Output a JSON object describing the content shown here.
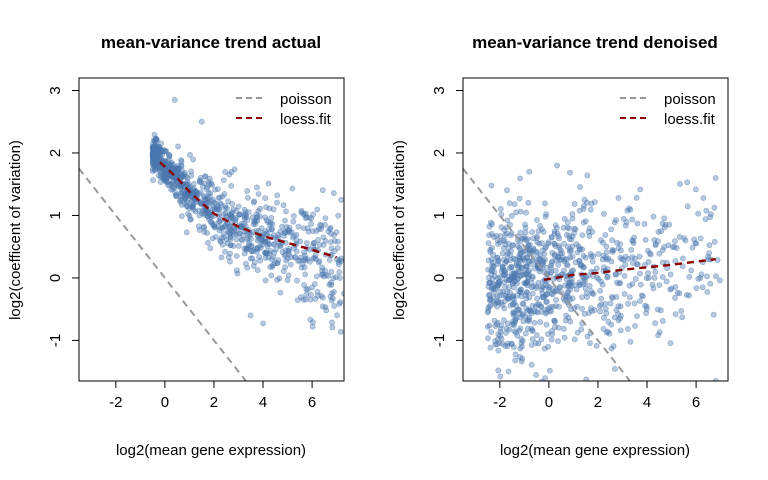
{
  "chart_data": [
    {
      "type": "scatter",
      "title": "mean-variance trend actual",
      "xlabel": "log2(mean gene expression)",
      "ylabel": "log2(coefficent of variation)",
      "xlim": [
        -3.5,
        7.3
      ],
      "ylim": [
        -1.65,
        3.2
      ],
      "xticks": [
        -2,
        0,
        2,
        4,
        6
      ],
      "yticks": [
        -1,
        0,
        1,
        2,
        3
      ],
      "legend": {
        "position": "top-right",
        "entries": [
          "poisson",
          "loess.fit"
        ]
      },
      "point_color": "#4a78b0",
      "point_cloud": {
        "n": 900,
        "x_range": [
          -0.5,
          7.2
        ],
        "trend": [
          [
            -0.3,
            1.95
          ],
          [
            0,
            1.8
          ],
          [
            1,
            1.4
          ],
          [
            2,
            1.05
          ],
          [
            3,
            0.8
          ],
          [
            4,
            0.65
          ],
          [
            5,
            0.5
          ],
          [
            6,
            0.35
          ],
          [
            7,
            0.2
          ]
        ],
        "spread": 0.28,
        "outliers": [
          [
            0.4,
            2.85
          ],
          [
            7.3,
            -0.25
          ],
          [
            6.9,
            -0.45
          ],
          [
            1.5,
            2.5
          ]
        ]
      },
      "series": [
        {
          "name": "poisson",
          "style": "dashed",
          "color": "#999999",
          "points": [
            [
              -3.5,
              1.75
            ],
            [
              3.3,
              -1.65
            ]
          ]
        },
        {
          "name": "loess.fit",
          "style": "dashed",
          "color": "#8b0000",
          "points": [
            [
              -0.2,
              1.85
            ],
            [
              0.5,
              1.6
            ],
            [
              1,
              1.38
            ],
            [
              1.5,
              1.2
            ],
            [
              2,
              1.03
            ],
            [
              2.5,
              0.92
            ],
            [
              3,
              0.82
            ],
            [
              4,
              0.67
            ],
            [
              5,
              0.56
            ],
            [
              6,
              0.45
            ],
            [
              7,
              0.33
            ]
          ]
        }
      ]
    },
    {
      "type": "scatter",
      "title": "mean-variance trend denoised",
      "xlabel": "log2(mean gene expression)",
      "ylabel": "log2(coefficent of variation)",
      "xlim": [
        -3.5,
        7.3
      ],
      "ylim": [
        -1.65,
        3.2
      ],
      "xticks": [
        -2,
        0,
        2,
        4,
        6
      ],
      "yticks": [
        -1,
        0,
        1,
        2,
        3
      ],
      "legend": {
        "position": "top-right",
        "entries": [
          "poisson",
          "loess.fit"
        ]
      },
      "point_color": "#4a78b0",
      "point_cloud": {
        "n": 900,
        "x_range": [
          -2.5,
          7.0
        ],
        "trend": [
          [
            -2.5,
            -0.1
          ],
          [
            0,
            0.0
          ],
          [
            3,
            0.15
          ],
          [
            7,
            0.3
          ]
        ],
        "spread": 0.6,
        "outliers": [
          [
            -0.8,
            1.7
          ],
          [
            6.8,
            1.6
          ],
          [
            6.8,
            -1.65
          ],
          [
            -1.1,
            -1.1
          ]
        ]
      },
      "series": [
        {
          "name": "poisson",
          "style": "dashed",
          "color": "#999999",
          "points": [
            [
              -3.5,
              1.75
            ],
            [
              3.3,
              -1.65
            ]
          ]
        },
        {
          "name": "loess.fit",
          "style": "dashed",
          "color": "#8b0000",
          "points": [
            [
              -0.2,
              -0.03
            ],
            [
              1,
              0.05
            ],
            [
              2,
              0.08
            ],
            [
              3,
              0.13
            ],
            [
              4,
              0.17
            ],
            [
              5,
              0.21
            ],
            [
              6,
              0.26
            ],
            [
              6.8,
              0.3
            ]
          ]
        }
      ]
    }
  ]
}
